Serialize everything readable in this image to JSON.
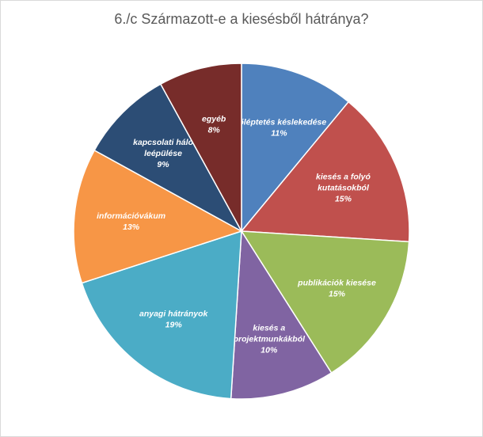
{
  "chart_data": {
    "type": "pie",
    "title": "6./c Származott-e a kiesésből hátránya?",
    "slices": [
      {
        "label_lines": [
          "előléptetés késlekedése"
        ],
        "pct_label": "11%",
        "value": 11,
        "color": "#4f81bd"
      },
      {
        "label_lines": [
          "kiesés a folyó",
          "kutatásokból"
        ],
        "pct_label": "15%",
        "value": 15,
        "color": "#c0504d"
      },
      {
        "label_lines": [
          "publikációk kiesése"
        ],
        "pct_label": "15%",
        "value": 15,
        "color": "#9bbb59"
      },
      {
        "label_lines": [
          "kiesés a",
          "projektmunkákból"
        ],
        "pct_label": "10%",
        "value": 10,
        "color": "#8064a2"
      },
      {
        "label_lines": [
          "anyagi hátrányok"
        ],
        "pct_label": "19%",
        "value": 19,
        "color": "#4bacc6"
      },
      {
        "label_lines": [
          "információvákum"
        ],
        "pct_label": "13%",
        "value": 13,
        "color": "#f79646"
      },
      {
        "label_lines": [
          "kapcsolati háló",
          "leépülése"
        ],
        "pct_label": "9%",
        "value": 9,
        "color": "#2c4d75"
      },
      {
        "label_lines": [
          "egyéb"
        ],
        "pct_label": "8%",
        "value": 8,
        "color": "#772c2a"
      }
    ],
    "start": "12 o'clock",
    "direction": "clockwise"
  }
}
